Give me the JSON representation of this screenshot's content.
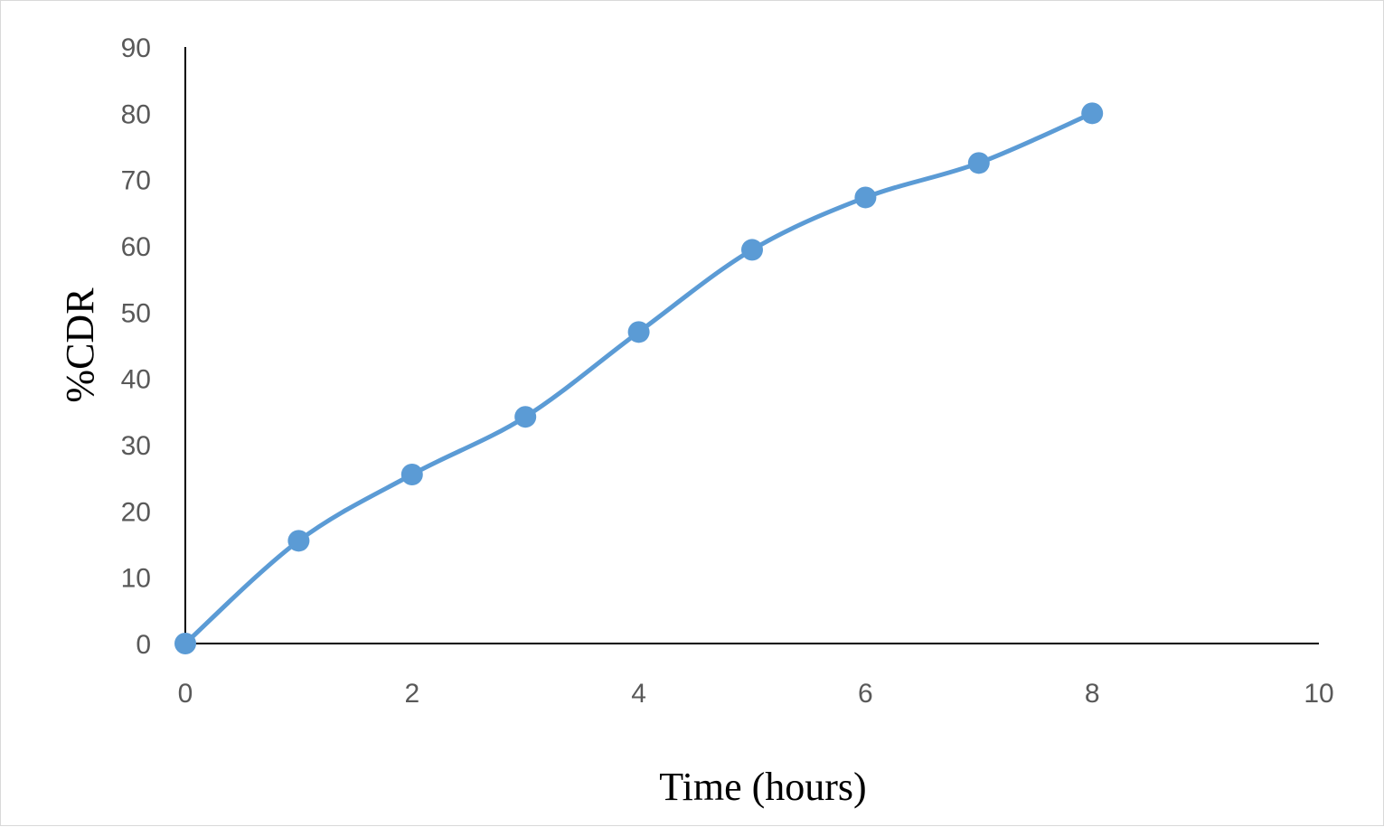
{
  "chart_data": {
    "type": "line",
    "title": "",
    "xlabel": "Time (hours)",
    "ylabel": "%CDR",
    "xlim": [
      0,
      10
    ],
    "ylim": [
      0,
      90
    ],
    "x_ticks": [
      0,
      2,
      4,
      6,
      8,
      10
    ],
    "y_ticks": [
      0,
      10,
      20,
      30,
      40,
      50,
      60,
      70,
      80,
      90
    ],
    "grid": false,
    "legend": "none",
    "smooth": true,
    "series": [
      {
        "color": "#5b9bd5",
        "x": [
          0,
          1,
          2,
          3,
          4,
          5,
          6,
          7,
          8
        ],
        "y": [
          0,
          15.5,
          25.5,
          34.2,
          47,
          59.4,
          67.3,
          72.5,
          80
        ]
      }
    ]
  }
}
